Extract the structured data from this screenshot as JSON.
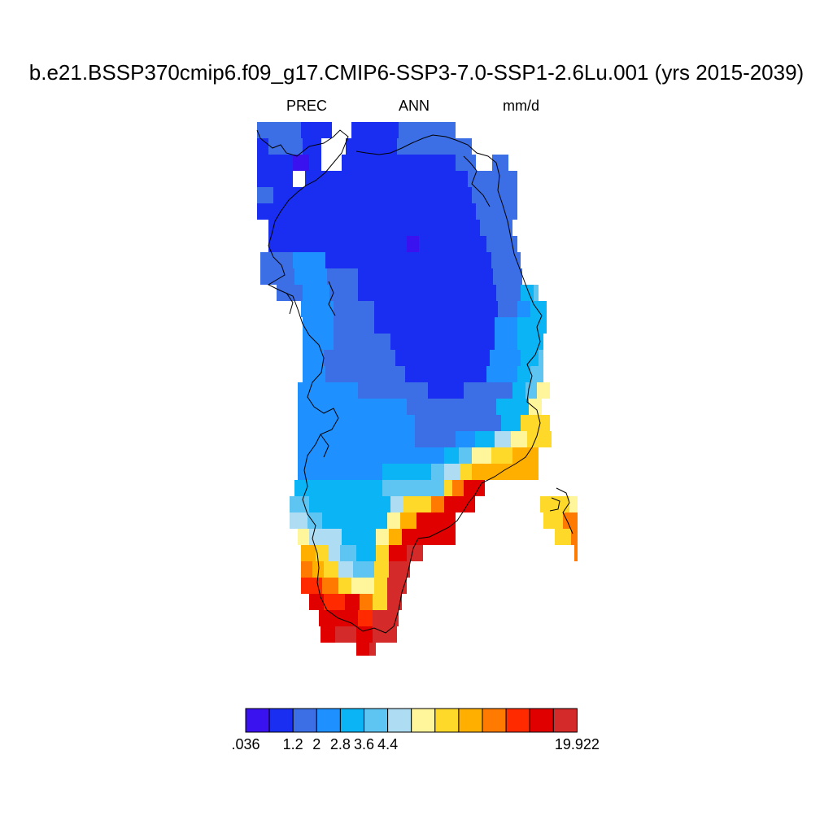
{
  "title": "b.e21.BSSP370cmip6.f09_g17.CMIP6-SSP3-7.0-SSP1-2.6Lu.001 (yrs 2015-2039)",
  "variable": "PREC",
  "season": "ANN",
  "units": "mm/d",
  "colorbar": {
    "colors": [
      "#3a12f0",
      "#1a2ef2",
      "#3c6ee6",
      "#1e90ff",
      "#0ab4f5",
      "#5ec4f2",
      "#aedcf2",
      "#fff59a",
      "#ffd92a",
      "#ffaf00",
      "#ff7a00",
      "#ff2a00",
      "#e00000",
      "#d42a2a"
    ],
    "labels": [
      ".036",
      "1.2",
      "2",
      "2.8",
      "3.6",
      "4.4",
      "19.922"
    ],
    "label_boundaries": [
      0,
      2,
      3,
      4,
      5,
      6,
      8
    ]
  },
  "chart_data": {
    "type": "heatmap",
    "field": "PREC",
    "units": "mm/d",
    "region": "Greenland",
    "period": "2015-2039",
    "range": [
      0.036,
      19.922
    ],
    "gradient": "precipitation lowest over the central-north ice sheet interior (0.036-0.5 mm/d), increasing toward the coasts, highest along the southeast coast (4.4-19.922 mm/d)"
  }
}
